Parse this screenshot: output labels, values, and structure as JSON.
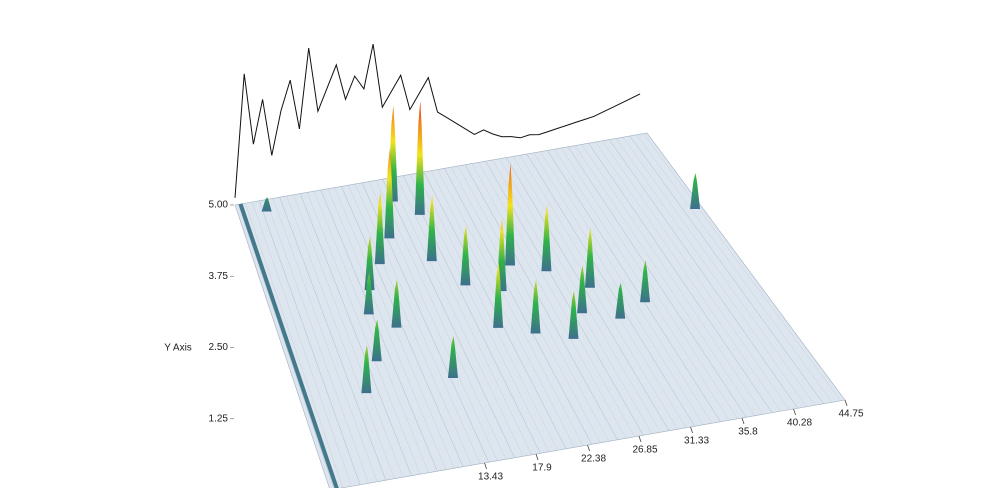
{
  "chart_data": {
    "type": "surface3d",
    "y_label": "Y Axis",
    "xlim": [
      0,
      44.75
    ],
    "ylim": [
      0,
      5
    ],
    "zlim": [
      0,
      100
    ],
    "xticks": [
      13.43,
      17.9,
      22.38,
      26.85,
      31.33,
      35.8,
      40.28,
      44.75
    ],
    "yticks": [
      {
        "value": 1.25,
        "label": "1.25"
      },
      {
        "value": 2.5,
        "label": "2.50"
      },
      {
        "value": 3.75,
        "label": "3.75"
      },
      {
        "value": 5,
        "label": "5.00"
      }
    ],
    "colormap": [
      "#3d6f8e",
      "#2fb34a",
      "#f2e21c",
      "#f28a1c",
      "#e01b1b"
    ],
    "trace_color": "#111111",
    "floor_color": "#dde5ee",
    "peaks": {
      "x": [
        18,
        16,
        14,
        12,
        10,
        24,
        22,
        27,
        30,
        20,
        26,
        8,
        6,
        14,
        34,
        44,
        3,
        19,
        23,
        28,
        11,
        17,
        31,
        9
      ],
      "y": [
        4.3,
        4.6,
        4.0,
        3.6,
        3.2,
        3.2,
        2.8,
        3.0,
        2.6,
        2.2,
        1.8,
        2.0,
        1.5,
        1.5,
        2.2,
        3.6,
        4.8,
        3.0,
        2.0,
        2.2,
        2.5,
        3.5,
        2.0,
        2.8
      ],
      "z": [
        95,
        80,
        75,
        60,
        45,
        85,
        60,
        55,
        50,
        55,
        40,
        35,
        40,
        35,
        35,
        30,
        12,
        50,
        45,
        40,
        40,
        55,
        30,
        35
      ]
    },
    "trace": {
      "x": [
        0,
        1,
        2,
        3,
        4,
        5,
        6,
        7,
        8,
        9,
        10,
        11,
        12,
        13,
        14,
        15,
        16,
        17,
        18,
        19,
        20,
        21,
        22,
        23,
        24,
        25,
        26,
        27,
        28,
        29,
        30,
        31,
        32,
        33,
        34,
        35,
        36,
        37,
        38,
        39,
        40,
        41,
        42,
        43,
        44
      ],
      "values": [
        5,
        90,
        40,
        70,
        30,
        60,
        80,
        45,
        100,
        55,
        70,
        85,
        60,
        75,
        65,
        95,
        50,
        60,
        70,
        45,
        55,
        65,
        40,
        35,
        30,
        25,
        20,
        22,
        18,
        15,
        14,
        12,
        13,
        12,
        13,
        14,
        15,
        16,
        17,
        18,
        20,
        22,
        24,
        26,
        28
      ]
    }
  }
}
